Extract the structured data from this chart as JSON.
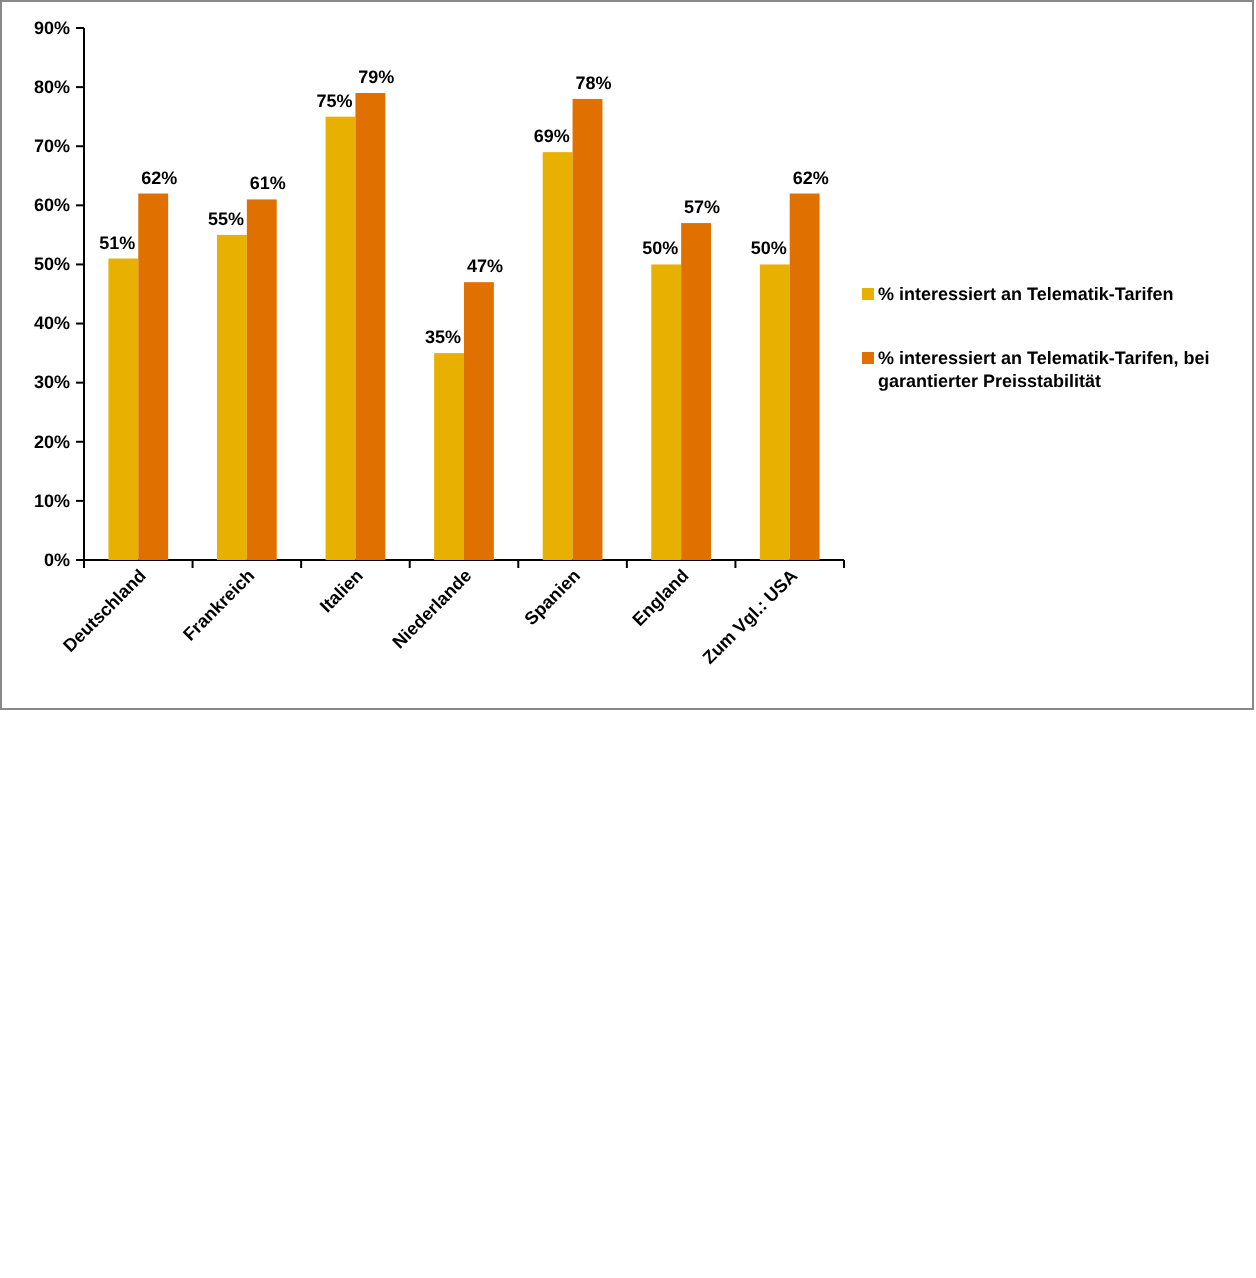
{
  "chart_data": {
    "type": "bar",
    "categories": [
      "Deutschland",
      "Frankreich",
      "Italien",
      "Niederlande",
      "Spanien",
      "England",
      "Zum Vgl.: USA"
    ],
    "series": [
      {
        "name": "% interessiert an Telematik-Tarifen",
        "color": "#e8b000",
        "values": [
          51,
          55,
          75,
          35,
          69,
          50,
          50
        ],
        "value_labels": [
          "51%",
          "55%",
          "75%",
          "35%",
          "69%",
          "50%",
          "50%"
        ]
      },
      {
        "name": "% interessiert an Telematik-Tarifen, bei garantierter Preisstabilität",
        "color": "#e07000",
        "values": [
          62,
          61,
          79,
          47,
          78,
          57,
          62
        ],
        "value_labels": [
          "62%",
          "61%",
          "79%",
          "47%",
          "78%",
          "57%",
          "62%"
        ]
      }
    ],
    "ylim": [
      0,
      90
    ],
    "yticks": [
      {
        "value": 0,
        "label": "0%"
      },
      {
        "value": 10,
        "label": "10%"
      },
      {
        "value": 20,
        "label": "20%"
      },
      {
        "value": 30,
        "label": "30%"
      },
      {
        "value": 40,
        "label": "40%"
      },
      {
        "value": 50,
        "label": "50%"
      },
      {
        "value": 60,
        "label": "60%"
      },
      {
        "value": 70,
        "label": "70%"
      },
      {
        "value": 80,
        "label": "80%"
      },
      {
        "value": 90,
        "label": "90%"
      }
    ],
    "legend": "right",
    "grid": false
  }
}
